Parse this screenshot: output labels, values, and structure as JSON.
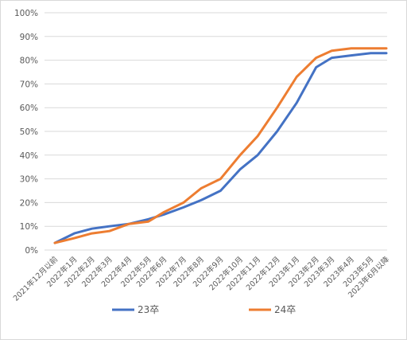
{
  "chart_data": {
    "type": "line",
    "title": "",
    "xlabel": "",
    "ylabel": "",
    "ylim": [
      0,
      100
    ],
    "y_ticks": [
      "0%",
      "10%",
      "20%",
      "30%",
      "40%",
      "50%",
      "60%",
      "70%",
      "80%",
      "90%",
      "100%"
    ],
    "y_unit": "%",
    "grid": true,
    "legend_position": "bottom",
    "categories": [
      "2021年12月以前",
      "2022年1月",
      "2022年2月",
      "2022年3月",
      "2022年4月",
      "2022年5月",
      "2022年6月",
      "2022年7月",
      "2022年8月",
      "2022年9月",
      "2022年10月",
      "2022年11月",
      "2022年12月",
      "2023年1月",
      "2023年2月",
      "2023年3月",
      "2023年4月",
      "2023年5月",
      "2023年6月以降"
    ],
    "x_positions": [
      0,
      1,
      1.9,
      2.8,
      3.8,
      4.8,
      5.6,
      6.6,
      7.5,
      8.5,
      9.5,
      10.4,
      11.4,
      12.4,
      13.4,
      14.2,
      15.2,
      16.2,
      17.0
    ],
    "series": [
      {
        "name": "23卒",
        "color": "#4472C4",
        "values": [
          3,
          7,
          9,
          10,
          11,
          13,
          15,
          18,
          21,
          25,
          34,
          40,
          50,
          62,
          77,
          81,
          82,
          83,
          83
        ]
      },
      {
        "name": "24卒",
        "color": "#ED7D31",
        "values": [
          3,
          5,
          7,
          8,
          11,
          12,
          16,
          20,
          26,
          30,
          40,
          48,
          60,
          73,
          81,
          84,
          85,
          85,
          85
        ]
      }
    ]
  }
}
